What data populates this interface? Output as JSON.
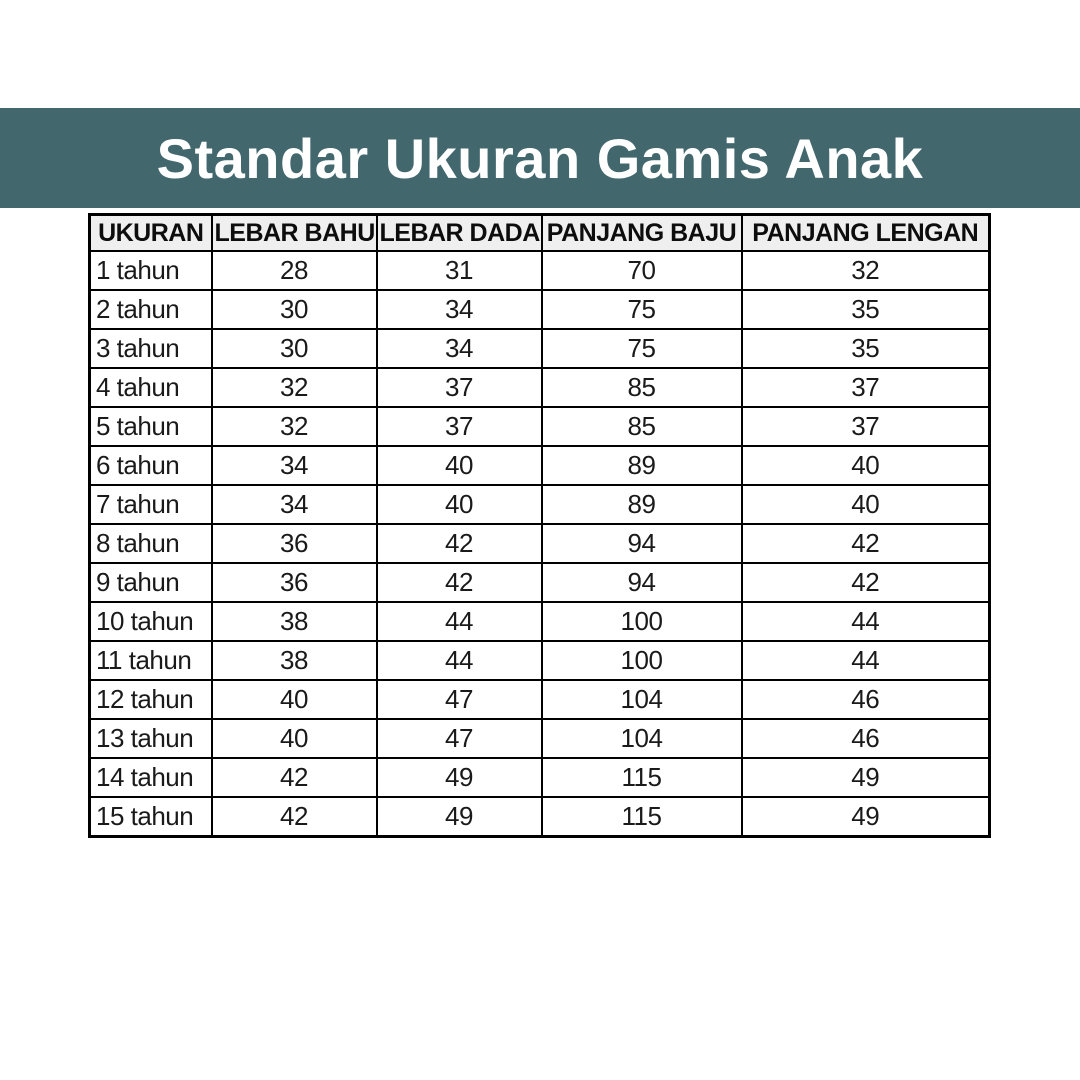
{
  "banner": {
    "bg_color": "#42686e",
    "text_color": "#ffffff"
  },
  "chart_data": {
    "type": "table",
    "title": "Standar Ukuran Gamis Anak",
    "columns": [
      "UKURAN",
      "LEBAR BAHU",
      "LEBAR DADA",
      "PANJANG BAJU",
      "PANJANG LENGAN"
    ],
    "rows": [
      [
        "1 tahun",
        28,
        31,
        70,
        32
      ],
      [
        "2 tahun",
        30,
        34,
        75,
        35
      ],
      [
        "3 tahun",
        30,
        34,
        75,
        35
      ],
      [
        "4 tahun",
        32,
        37,
        85,
        37
      ],
      [
        "5 tahun",
        32,
        37,
        85,
        37
      ],
      [
        "6 tahun",
        34,
        40,
        89,
        40
      ],
      [
        "7 tahun",
        34,
        40,
        89,
        40
      ],
      [
        "8 tahun",
        36,
        42,
        94,
        42
      ],
      [
        "9 tahun",
        36,
        42,
        94,
        42
      ],
      [
        "10 tahun",
        38,
        44,
        100,
        44
      ],
      [
        "11 tahun",
        38,
        44,
        100,
        44
      ],
      [
        "12 tahun",
        40,
        47,
        104,
        46
      ],
      [
        "13 tahun",
        40,
        47,
        104,
        46
      ],
      [
        "14 tahun",
        42,
        49,
        115,
        49
      ],
      [
        "15 tahun",
        42,
        49,
        115,
        49
      ]
    ]
  }
}
